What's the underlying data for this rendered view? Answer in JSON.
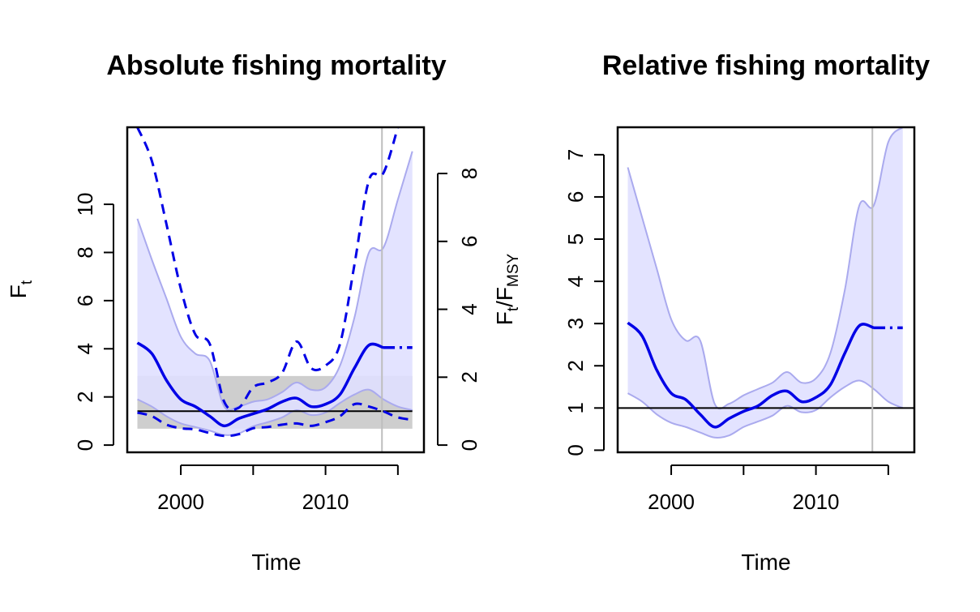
{
  "chart_data": [
    {
      "type": "line",
      "title": "Absolute fishing mortality",
      "xlabel": "Time",
      "ylabel": "F",
      "ylabel_sub": "t",
      "right_ylabel": "F",
      "right_ylabel_sub1": "t",
      "right_ylabel_slash": "/F",
      "right_ylabel_sub2": "MSY",
      "xlim": [
        1996.3,
        2016.8
      ],
      "ylim": [
        -0.3,
        13.2
      ],
      "x_ticks": [
        2000,
        2005,
        2010,
        2015
      ],
      "x_tick_labels": [
        "2000",
        "",
        "2010",
        ""
      ],
      "y_ticks": [
        0,
        2,
        4,
        6,
        8,
        10
      ],
      "y_tick_labels": [
        "0",
        "2",
        "4",
        "6",
        "8",
        "10"
      ],
      "right_axis_ratio": 1.41,
      "right_ticks": [
        0,
        2,
        4,
        6,
        8
      ],
      "right_tick_labels": [
        "0",
        "2",
        "4",
        "6",
        "8"
      ],
      "vline_x": 2013.9,
      "fmsy": 1.41,
      "fmsy_band": [
        0.68,
        2.87
      ],
      "colors": {
        "line": "#0000e6",
        "band_fill": "#e0e0ff",
        "band_edge": "#aaaaee",
        "gray_band": "#bebebe",
        "vline": "#bebebe"
      },
      "series": [
        {
          "role": "estimate",
          "x": [
            1997,
            1998,
            1999,
            2000,
            2001,
            2002,
            2003,
            2004,
            2005,
            2006,
            2007,
            2008,
            2009,
            2010,
            2011,
            2012,
            2013,
            2014,
            2015,
            2016
          ],
          "values": [
            4.25,
            3.8,
            2.7,
            1.9,
            1.6,
            1.2,
            0.8,
            1.1,
            1.3,
            1.5,
            1.8,
            1.95,
            1.6,
            1.7,
            2.1,
            3.2,
            4.15,
            4.05,
            4.05,
            4.05
          ]
        },
        {
          "role": "ci_upper",
          "x": [
            1997,
            1998,
            1999,
            2000,
            2001,
            2002,
            2003,
            2004,
            2005,
            2006,
            2007,
            2008,
            2009,
            2010,
            2011,
            2012,
            2013,
            2014,
            2015,
            2016
          ],
          "values": [
            9.4,
            7.7,
            6.1,
            4.5,
            3.8,
            3.5,
            1.6,
            1.6,
            1.8,
            1.9,
            2.2,
            2.6,
            2.3,
            2.4,
            3.3,
            5.3,
            8.0,
            8.2,
            10.2,
            12.2
          ]
        },
        {
          "role": "ci_lower",
          "x": [
            1997,
            1998,
            1999,
            2000,
            2001,
            2002,
            2003,
            2004,
            2005,
            2006,
            2007,
            2008,
            2009,
            2010,
            2011,
            2012,
            2013,
            2014,
            2015,
            2016
          ],
          "values": [
            1.9,
            1.6,
            1.2,
            0.9,
            0.75,
            0.6,
            0.42,
            0.48,
            0.78,
            0.95,
            1.15,
            1.45,
            1.25,
            1.35,
            1.75,
            2.1,
            2.3,
            1.9,
            1.6,
            1.45
          ]
        },
        {
          "role": "dashed_upper",
          "x": [
            1997,
            1998,
            1999,
            2000,
            2001,
            2002,
            2003,
            2004,
            2005,
            2006,
            2007,
            2008,
            2009,
            2010,
            2011,
            2012,
            2013,
            2014,
            2015
          ],
          "values": [
            13.2,
            11.8,
            9.2,
            6.5,
            4.6,
            4.2,
            1.8,
            1.55,
            2.4,
            2.6,
            3.0,
            4.3,
            3.2,
            3.3,
            4.2,
            7.5,
            11.0,
            11.3,
            13.2
          ]
        },
        {
          "role": "dashed_lower",
          "x": [
            1997,
            1998,
            1999,
            2000,
            2001,
            2002,
            2003,
            2004,
            2005,
            2006,
            2007,
            2008,
            2009,
            2010,
            2011,
            2012,
            2013,
            2014,
            2015,
            2016
          ],
          "values": [
            1.35,
            1.2,
            0.85,
            0.7,
            0.65,
            0.5,
            0.38,
            0.45,
            0.7,
            0.75,
            0.85,
            0.9,
            0.8,
            0.95,
            1.2,
            1.7,
            1.6,
            1.4,
            1.15,
            1.05
          ]
        }
      ]
    },
    {
      "type": "line",
      "title": "Relative fishing mortality",
      "xlabel": "Time",
      "xlim": [
        1996.3,
        2016.8
      ],
      "ylim": [
        -0.05,
        7.65
      ],
      "x_ticks": [
        2000,
        2005,
        2010,
        2015
      ],
      "x_tick_labels": [
        "2000",
        "",
        "2010",
        ""
      ],
      "y_ticks": [
        0,
        1,
        2,
        3,
        4,
        5,
        6,
        7
      ],
      "y_tick_labels": [
        "0",
        "1",
        "2",
        "3",
        "4",
        "5",
        "6",
        "7"
      ],
      "vline_x": 2013.9,
      "hline_y": 1,
      "colors": {
        "line": "#0000e6",
        "band_fill": "#e0e0ff",
        "band_edge": "#aaaaee",
        "vline": "#bebebe"
      },
      "series": [
        {
          "role": "estimate",
          "x": [
            1997,
            1998,
            1999,
            2000,
            2001,
            2002,
            2003,
            2004,
            2005,
            2006,
            2007,
            2008,
            2009,
            2010,
            2011,
            2012,
            2013,
            2014,
            2015,
            2016
          ],
          "values": [
            3.02,
            2.7,
            1.9,
            1.35,
            1.2,
            0.85,
            0.55,
            0.75,
            0.92,
            1.05,
            1.3,
            1.4,
            1.15,
            1.25,
            1.55,
            2.3,
            2.95,
            2.9,
            2.9,
            2.9
          ]
        },
        {
          "role": "ci_upper",
          "x": [
            1997,
            1998,
            1999,
            2000,
            2001,
            2002,
            2003,
            2004,
            2005,
            2006,
            2007,
            2008,
            2009,
            2010,
            2011,
            2012,
            2013,
            2014,
            2015,
            2016
          ],
          "values": [
            6.7,
            5.5,
            4.3,
            3.1,
            2.6,
            2.6,
            1.1,
            1.1,
            1.3,
            1.45,
            1.6,
            1.85,
            1.6,
            1.7,
            2.3,
            3.8,
            5.8,
            5.8,
            7.3,
            7.65
          ]
        },
        {
          "role": "ci_lower",
          "x": [
            1997,
            1998,
            1999,
            2000,
            2001,
            2002,
            2003,
            2004,
            2005,
            2006,
            2007,
            2008,
            2009,
            2010,
            2011,
            2012,
            2013,
            2014,
            2015,
            2016
          ],
          "values": [
            1.35,
            1.15,
            0.85,
            0.65,
            0.55,
            0.42,
            0.3,
            0.35,
            0.55,
            0.68,
            0.82,
            1.05,
            0.9,
            0.95,
            1.25,
            1.5,
            1.65,
            1.45,
            1.15,
            1.0
          ]
        }
      ]
    }
  ]
}
